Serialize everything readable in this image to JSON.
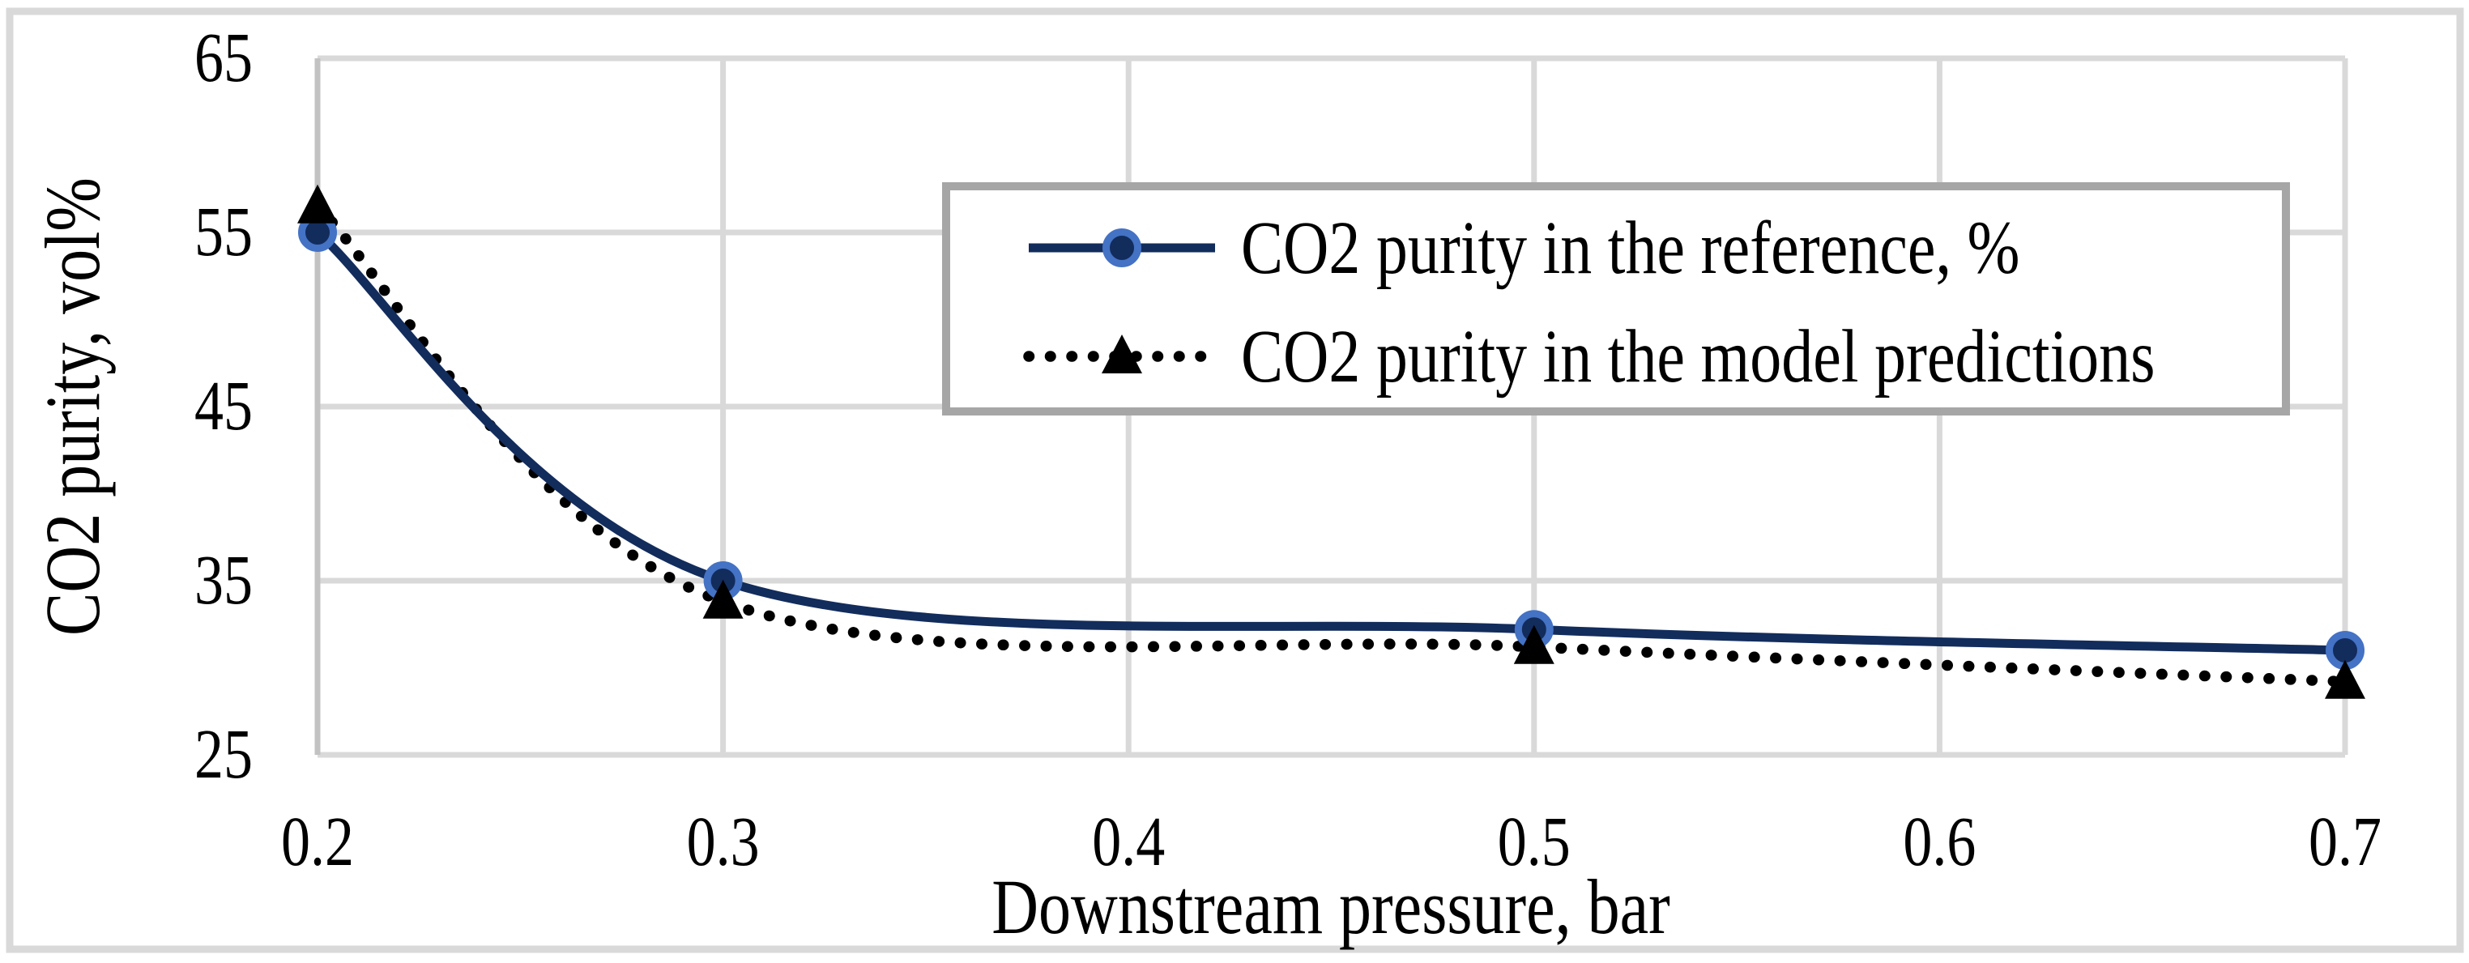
{
  "chart_data": {
    "type": "line",
    "title": "",
    "x": [
      0.2,
      0.3,
      0.5,
      0.7
    ],
    "series": [
      {
        "name": "CO2 purity in the reference, %",
        "values": [
          55,
          35,
          32.2,
          31
        ],
        "line_style": "solid",
        "line_color": "#122c5c",
        "marker": "circle",
        "marker_fill": "#122c5c",
        "marker_ring_color": "#4472c4"
      },
      {
        "name": "CO2 purity in the model predictions",
        "values": [
          56.5,
          33.8,
          31.2,
          29.2
        ],
        "line_style": "dotted",
        "line_color": "#000000",
        "marker": "triangle",
        "marker_fill": "#000000"
      }
    ],
    "xlabel": "Downstream pressure, bar",
    "ylabel": "CO2 purity, vol%",
    "xlim": [
      0.2,
      0.7
    ],
    "ylim": [
      25,
      65
    ],
    "xticks": [
      0.2,
      0.3,
      0.4,
      0.5,
      0.6,
      0.7
    ],
    "yticks": [
      65,
      55,
      45,
      35,
      25
    ],
    "grid": true,
    "legend_position": "inside-top-right"
  },
  "style": {
    "background": "#ffffff",
    "gridline_color": "#d9d9d9",
    "axis_line_color": "#c2c2c2",
    "frame_color": "#d9d9d9",
    "legend_border_color": "#a6a6a6",
    "legend_fill": "#ffffff",
    "text_color": "#000000"
  }
}
